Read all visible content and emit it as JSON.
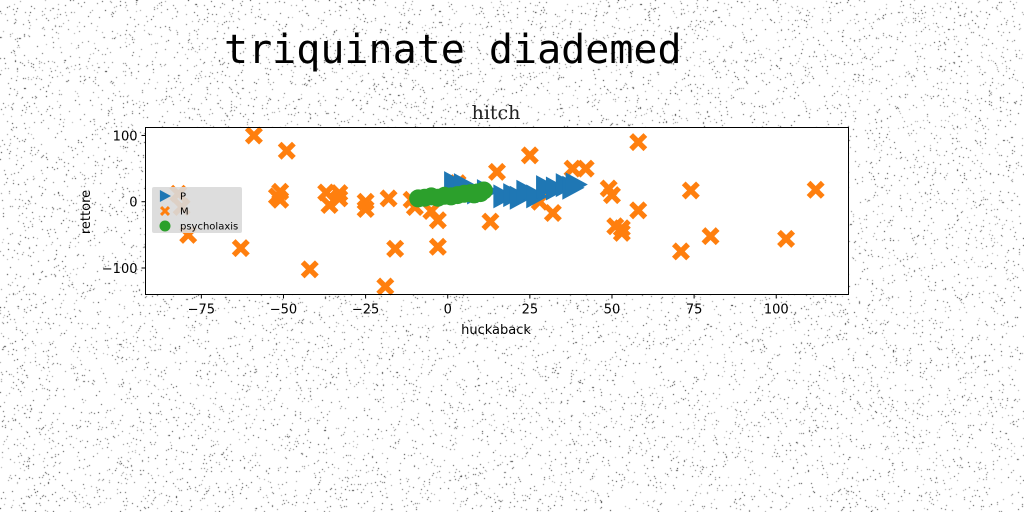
{
  "figure": {
    "suptitle": "triquinate diademed"
  },
  "chart_data": {
    "type": "scatter",
    "title": "hitch",
    "xlabel": "huckaback",
    "ylabel": "rettore",
    "xlim": [
      -92,
      122
    ],
    "ylim": [
      -140,
      112
    ],
    "xticks": [
      -75,
      -50,
      -25,
      0,
      25,
      50,
      75,
      100
    ],
    "xtick_labels": [
      "−75",
      "−50",
      "−25",
      "0",
      "25",
      "50",
      "75",
      "100"
    ],
    "yticks": [
      -100,
      0,
      100
    ],
    "ytick_labels": [
      "−100",
      "0",
      "100"
    ],
    "grid": false,
    "legend": {
      "position": "center-left",
      "background": "#d9d9d9"
    },
    "series": [
      {
        "name": "P",
        "marker": "triangle-right",
        "color": "#1f77b4",
        "x": [
          2,
          5,
          9,
          12,
          17,
          20,
          22,
          24,
          27,
          30,
          33,
          36,
          38,
          39
        ],
        "y": [
          28,
          25,
          14,
          16,
          8,
          10,
          6,
          15,
          8,
          22,
          20,
          25,
          21,
          26
        ]
      },
      {
        "name": "M",
        "marker": "x-filled",
        "color": "#ff7f0e",
        "x": [
          -59,
          -49,
          -82,
          -52,
          -51,
          -51,
          -37,
          -36,
          -33,
          -33,
          -25,
          -25,
          -18,
          -16,
          -19,
          -42,
          -63,
          -79,
          -81,
          -11,
          -10,
          -5,
          -3,
          -3,
          3,
          13,
          15,
          25,
          28,
          32,
          38,
          42,
          50,
          49,
          51,
          53,
          53,
          58,
          58,
          71,
          74,
          80,
          103,
          112
        ],
        "y": [
          100,
          77,
          12,
          8,
          15,
          3,
          14,
          -5,
          13,
          5,
          0,
          -11,
          5,
          -71,
          -128,
          -102,
          -70,
          -50,
          -8,
          3,
          -8,
          -14,
          -28,
          -68,
          28,
          -30,
          45,
          70,
          0,
          -17,
          50,
          50,
          10,
          20,
          -37,
          -40,
          -47,
          -13,
          90,
          -75,
          17,
          -52,
          -56,
          18
        ]
      },
      {
        "name": "psycholaxis",
        "marker": "circle",
        "color": "#2ca02c",
        "x": [
          -9,
          -7,
          -5,
          -3,
          -1,
          1,
          3,
          5,
          7,
          9,
          11,
          10,
          8
        ],
        "y": [
          5,
          6,
          8,
          6,
          9,
          8,
          10,
          12,
          13,
          14,
          17,
          13,
          11
        ]
      }
    ]
  }
}
